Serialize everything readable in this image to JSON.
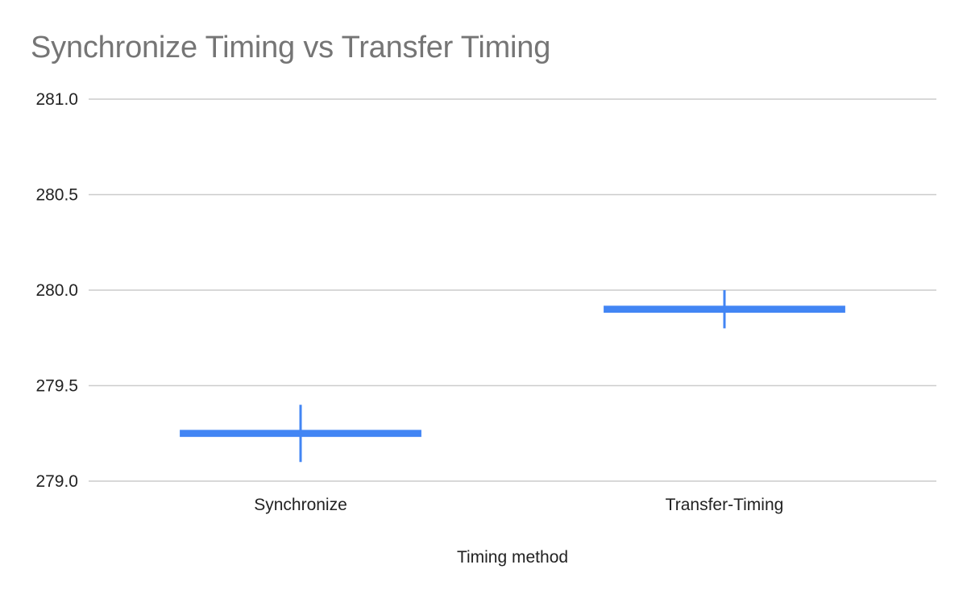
{
  "chart_data": {
    "type": "candlestick",
    "title": "Synchronize Timing vs Transfer Timing",
    "xlabel": "Timing method",
    "ylabel": "",
    "categories": [
      "Synchronize",
      "Transfer-Timing"
    ],
    "points": [
      {
        "category": "Synchronize",
        "low": 279.1,
        "open": 279.26,
        "close": 279.24,
        "high": 279.4
      },
      {
        "category": "Transfer-Timing",
        "low": 279.8,
        "open": 279.91,
        "close": 279.89,
        "high": 280.0
      }
    ],
    "ylim": [
      279.0,
      281.0
    ],
    "yticks": [
      "279.0",
      "279.5",
      "280.0",
      "280.5",
      "281.0"
    ],
    "yticks_values": [
      279.0,
      279.5,
      280.0,
      280.5,
      281.0
    ],
    "grid": true,
    "legend": "none",
    "series_color": "#4285F4",
    "grid_color": "#cccccc"
  }
}
